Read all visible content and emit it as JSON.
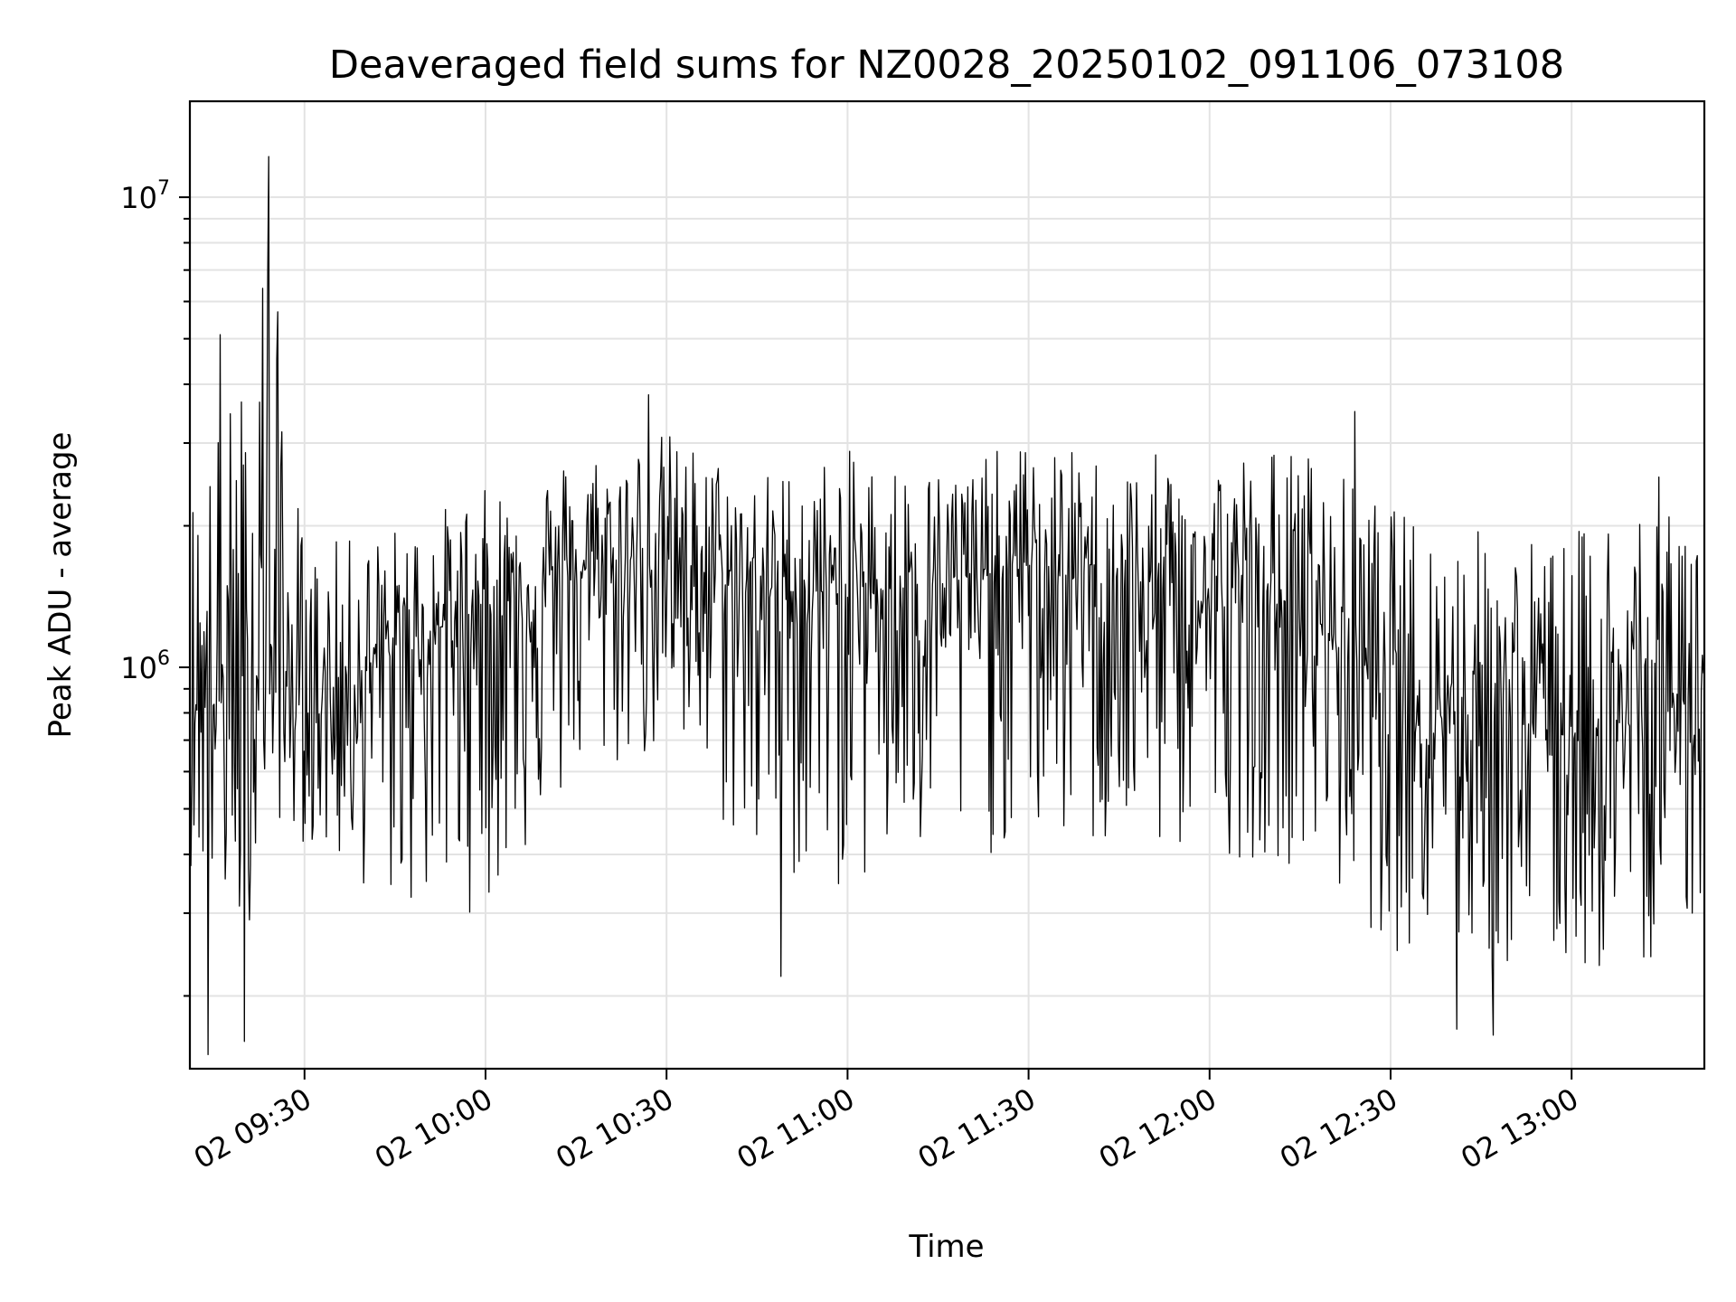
{
  "chart_data": {
    "type": "line",
    "title": "Deaveraged field sums for NZ0028_20250102_091106_073108",
    "xlabel": "Time",
    "ylabel": "Peak ADU - average",
    "y_scale": "log",
    "ylim": [
      140000,
      16000000
    ],
    "xlim": [
      "2025-01-02 09:11",
      "2025-01-02 13:22"
    ],
    "x_ticks": [
      {
        "label": "02 09:30",
        "time": "2025-01-02 09:30"
      },
      {
        "label": "02 10:00",
        "time": "2025-01-02 10:00"
      },
      {
        "label": "02 10:30",
        "time": "2025-01-02 10:30"
      },
      {
        "label": "02 11:00",
        "time": "2025-01-02 11:00"
      },
      {
        "label": "02 11:30",
        "time": "2025-01-02 11:30"
      },
      {
        "label": "02 12:00",
        "time": "2025-01-02 12:00"
      },
      {
        "label": "02 12:30",
        "time": "2025-01-02 12:30"
      },
      {
        "label": "02 13:00",
        "time": "2025-01-02 13:00"
      }
    ],
    "y_ticks": [
      {
        "base": "10",
        "exp": "6",
        "value": 1000000
      },
      {
        "base": "10",
        "exp": "7",
        "value": 10000000
      }
    ],
    "grid": true,
    "line_color": "#000000",
    "series": [
      {
        "values_profile": [
          {
            "time": "2025-01-02 09:11",
            "median": 900000,
            "low": 380000,
            "high": 2500000
          },
          {
            "time": "2025-01-02 09:20",
            "median": 800000,
            "low": 230000,
            "high": 4500000
          },
          {
            "time": "2025-01-02 09:23",
            "median": 1100000,
            "low": 500000,
            "high": 12000000
          },
          {
            "time": "2025-01-02 09:30",
            "median": 800000,
            "low": 420000,
            "high": 1800000
          },
          {
            "time": "2025-01-02 09:45",
            "median": 1100000,
            "low": 300000,
            "high": 2000000
          },
          {
            "time": "2025-01-02 10:00",
            "median": 1350000,
            "low": 300000,
            "high": 2400000
          },
          {
            "time": "2025-01-02 10:15",
            "median": 1600000,
            "low": 550000,
            "high": 2900000
          },
          {
            "time": "2025-01-02 10:30",
            "median": 1700000,
            "low": 650000,
            "high": 3200000
          },
          {
            "time": "2025-01-02 10:45",
            "median": 1450000,
            "low": 350000,
            "high": 2600000
          },
          {
            "time": "2025-01-02 11:00",
            "median": 1450000,
            "low": 330000,
            "high": 2900000
          },
          {
            "time": "2025-01-02 11:15",
            "median": 1500000,
            "low": 360000,
            "high": 2700000
          },
          {
            "time": "2025-01-02 11:30",
            "median": 1650000,
            "low": 420000,
            "high": 3000000
          },
          {
            "time": "2025-01-02 11:45",
            "median": 1450000,
            "low": 380000,
            "high": 2800000
          },
          {
            "time": "2025-01-02 12:00",
            "median": 1350000,
            "low": 400000,
            "high": 2900000
          },
          {
            "time": "2025-01-02 12:15",
            "median": 1350000,
            "low": 380000,
            "high": 3000000
          },
          {
            "time": "2025-01-02 12:30",
            "median": 900000,
            "low": 250000,
            "high": 2200000
          },
          {
            "time": "2025-01-02 12:45",
            "median": 800000,
            "low": 220000,
            "high": 2000000
          },
          {
            "time": "2025-01-02 13:00",
            "median": 750000,
            "low": 220000,
            "high": 1900000
          },
          {
            "time": "2025-01-02 13:10",
            "median": 750000,
            "low": 220000,
            "high": 2600000
          },
          {
            "time": "2025-01-02 13:22",
            "median": 900000,
            "low": 300000,
            "high": 2500000
          }
        ],
        "notable_points": [
          {
            "time": "2025-01-02 09:24",
            "value": 12200000
          },
          {
            "time": "2025-01-02 09:23",
            "value": 6400000
          },
          {
            "time": "2025-01-02 09:16",
            "value": 5100000
          },
          {
            "time": "2025-01-02 09:14",
            "value": 150000
          },
          {
            "time": "2025-01-02 09:20",
            "value": 160000
          },
          {
            "time": "2025-01-02 10:27",
            "value": 3800000
          },
          {
            "time": "2025-01-02 10:49",
            "value": 220000
          },
          {
            "time": "2025-01-02 12:41",
            "value": 170000
          },
          {
            "time": "2025-01-02 12:47",
            "value": 165000
          },
          {
            "time": "2025-01-02 12:24",
            "value": 3500000
          }
        ]
      }
    ]
  }
}
